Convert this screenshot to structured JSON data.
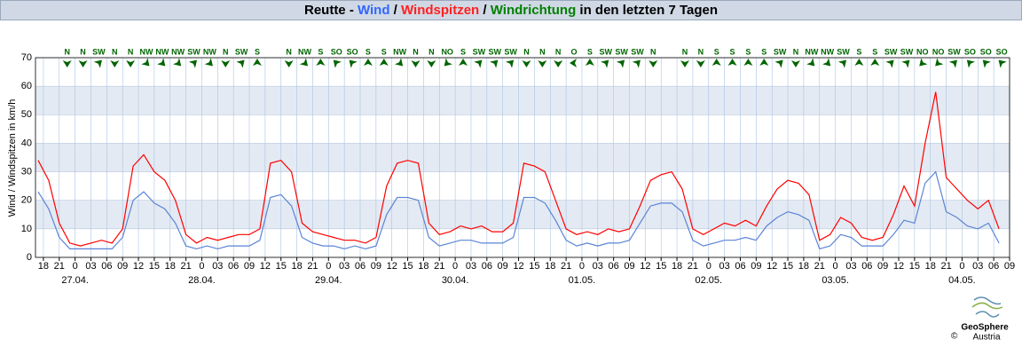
{
  "chart_data": {
    "type": "line",
    "title_parts": [
      {
        "text": "Reutte - ",
        "color": "#000000"
      },
      {
        "text": "Wind",
        "color": "#3366ff"
      },
      {
        "text": " / ",
        "color": "#000000"
      },
      {
        "text": "Windspitzen",
        "color": "#ff2020"
      },
      {
        "text": " / ",
        "color": "#000000"
      },
      {
        "text": "Windrichtung",
        "color": "#008000"
      },
      {
        "text": " in den letzten 7 Tagen",
        "color": "#000000"
      }
    ],
    "ylabel": "Wind / Windspitzen in km/h",
    "ylim": [
      0,
      70
    ],
    "yticks": [
      0,
      10,
      20,
      30,
      40,
      50,
      60,
      70
    ],
    "grid": true,
    "xlim": [
      -7.5,
      177
    ],
    "xticks": [
      {
        "value": -6,
        "label": "18"
      },
      {
        "value": -3,
        "label": "21"
      },
      {
        "value": 0,
        "label": "0"
      },
      {
        "value": 3,
        "label": "03"
      },
      {
        "value": 6,
        "label": "06"
      },
      {
        "value": 9,
        "label": "09"
      },
      {
        "value": 12,
        "label": "12"
      },
      {
        "value": 15,
        "label": "15"
      },
      {
        "value": 18,
        "label": "18"
      },
      {
        "value": 21,
        "label": "21"
      },
      {
        "value": 24,
        "label": "0"
      },
      {
        "value": 27,
        "label": "03"
      },
      {
        "value": 30,
        "label": "06"
      },
      {
        "value": 33,
        "label": "09"
      },
      {
        "value": 36,
        "label": "12"
      },
      {
        "value": 39,
        "label": "15"
      },
      {
        "value": 42,
        "label": "18"
      },
      {
        "value": 45,
        "label": "21"
      },
      {
        "value": 48,
        "label": "0"
      },
      {
        "value": 51,
        "label": "03"
      },
      {
        "value": 54,
        "label": "06"
      },
      {
        "value": 57,
        "label": "09"
      },
      {
        "value": 60,
        "label": "12"
      },
      {
        "value": 63,
        "label": "15"
      },
      {
        "value": 66,
        "label": "18"
      },
      {
        "value": 69,
        "label": "21"
      },
      {
        "value": 72,
        "label": "0"
      },
      {
        "value": 75,
        "label": "03"
      },
      {
        "value": 78,
        "label": "06"
      },
      {
        "value": 81,
        "label": "09"
      },
      {
        "value": 84,
        "label": "12"
      },
      {
        "value": 87,
        "label": "15"
      },
      {
        "value": 90,
        "label": "18"
      },
      {
        "value": 93,
        "label": "21"
      },
      {
        "value": 96,
        "label": "0"
      },
      {
        "value": 99,
        "label": "03"
      },
      {
        "value": 102,
        "label": "06"
      },
      {
        "value": 105,
        "label": "09"
      },
      {
        "value": 108,
        "label": "12"
      },
      {
        "value": 111,
        "label": "15"
      },
      {
        "value": 114,
        "label": "18"
      },
      {
        "value": 117,
        "label": "21"
      },
      {
        "value": 120,
        "label": "0"
      },
      {
        "value": 123,
        "label": "03"
      },
      {
        "value": 126,
        "label": "06"
      },
      {
        "value": 129,
        "label": "09"
      },
      {
        "value": 132,
        "label": "12"
      },
      {
        "value": 135,
        "label": "15"
      },
      {
        "value": 138,
        "label": "18"
      },
      {
        "value": 141,
        "label": "21"
      },
      {
        "value": 144,
        "label": "0"
      },
      {
        "value": 147,
        "label": "03"
      },
      {
        "value": 150,
        "label": "06"
      },
      {
        "value": 153,
        "label": "09"
      },
      {
        "value": 156,
        "label": "12"
      },
      {
        "value": 159,
        "label": "15"
      },
      {
        "value": 162,
        "label": "18"
      },
      {
        "value": 165,
        "label": "21"
      },
      {
        "value": 168,
        "label": "0"
      },
      {
        "value": 171,
        "label": "03"
      },
      {
        "value": 174,
        "label": "06"
      },
      {
        "value": 177,
        "label": "09"
      }
    ],
    "date_labels": [
      {
        "value": 0,
        "label": "27.04."
      },
      {
        "value": 24,
        "label": "28.04."
      },
      {
        "value": 48,
        "label": "29.04."
      },
      {
        "value": 72,
        "label": "30.04."
      },
      {
        "value": 96,
        "label": "01.05."
      },
      {
        "value": 120,
        "label": "02.05."
      },
      {
        "value": 144,
        "label": "03.05."
      },
      {
        "value": 168,
        "label": "04.05."
      }
    ],
    "x": [
      -7,
      -5,
      -3,
      -1,
      1,
      3,
      5,
      7,
      9,
      11,
      13,
      15,
      17,
      19,
      21,
      23,
      25,
      27,
      29,
      31,
      33,
      35,
      37,
      39,
      41,
      43,
      45,
      47,
      49,
      51,
      53,
      55,
      57,
      59,
      61,
      63,
      65,
      67,
      69,
      71,
      73,
      75,
      77,
      79,
      81,
      83,
      85,
      87,
      89,
      91,
      93,
      95,
      97,
      99,
      101,
      103,
      105,
      107,
      109,
      111,
      113,
      115,
      117,
      119,
      121,
      123,
      125,
      127,
      129,
      131,
      133,
      135,
      137,
      139,
      141,
      143,
      145,
      147,
      149,
      151,
      153,
      155,
      157,
      159,
      161,
      163,
      165,
      167,
      169,
      171,
      173,
      175
    ],
    "series": [
      {
        "name": "Windspitzen",
        "color": "#ff0000",
        "values": [
          34,
          27,
          12,
          5,
          4,
          5,
          6,
          5,
          10,
          32,
          36,
          30,
          27,
          20,
          8,
          5,
          7,
          6,
          7,
          8,
          8,
          10,
          33,
          34,
          30,
          12,
          9,
          8,
          7,
          6,
          6,
          5,
          7,
          25,
          33,
          34,
          33,
          12,
          8,
          9,
          11,
          10,
          11,
          9,
          9,
          12,
          33,
          32,
          30,
          20,
          10,
          8,
          9,
          8,
          10,
          9,
          10,
          18,
          27,
          29,
          30,
          24,
          10,
          8,
          10,
          12,
          11,
          13,
          11,
          18,
          24,
          27,
          26,
          22,
          6,
          8,
          14,
          12,
          7,
          6,
          7,
          15,
          25,
          18,
          40,
          58,
          28,
          24,
          20,
          17,
          20,
          10
        ]
      },
      {
        "name": "Wind",
        "color": "#5b84d6",
        "values": [
          23,
          17,
          7,
          3,
          3,
          3,
          3,
          3,
          7,
          20,
          23,
          19,
          17,
          12,
          4,
          3,
          4,
          3,
          4,
          4,
          4,
          6,
          21,
          22,
          18,
          7,
          5,
          4,
          4,
          3,
          4,
          3,
          4,
          15,
          21,
          21,
          20,
          7,
          4,
          5,
          6,
          6,
          5,
          5,
          5,
          7,
          21,
          21,
          19,
          13,
          6,
          4,
          5,
          4,
          5,
          5,
          6,
          12,
          18,
          19,
          19,
          16,
          6,
          4,
          5,
          6,
          6,
          7,
          6,
          11,
          14,
          16,
          15,
          13,
          3,
          4,
          8,
          7,
          4,
          4,
          4,
          8,
          13,
          12,
          26,
          30,
          16,
          14,
          11,
          10,
          12,
          5
        ]
      }
    ],
    "directions": {
      "x": [
        -1.5,
        1.5,
        4.5,
        7.5,
        10.5,
        13.5,
        16.5,
        19.5,
        22.5,
        25.5,
        28.5,
        31.5,
        34.5,
        37.5,
        40.5,
        43.5,
        46.5,
        49.5,
        52.5,
        55.5,
        58.5,
        61.5,
        64.5,
        67.5,
        70.5,
        73.5,
        76.5,
        79.5,
        82.5,
        85.5,
        88.5,
        91.5,
        94.5,
        97.5,
        100.5,
        103.5,
        106.5,
        109.5,
        112.5,
        115.5,
        118.5,
        121.5,
        124.5,
        127.5,
        130.5,
        133.5,
        136.5,
        139.5,
        142.5,
        145.5,
        148.5,
        151.5,
        154.5,
        157.5,
        160.5,
        163.5,
        166.5,
        169.5,
        172.5,
        175.5
      ],
      "labels": [
        "N",
        "N",
        "SW",
        "N",
        "N",
        "NW",
        "NW",
        "NW",
        "SW",
        "NW",
        "N",
        "SW",
        "S",
        null,
        "N",
        "NW",
        "S",
        "SO",
        "SO",
        "S",
        "S",
        "NW",
        "N",
        "N",
        "NO",
        "S",
        "SW",
        "SW",
        "SW",
        "N",
        "N",
        "N",
        "O",
        "S",
        "SW",
        "SW",
        "SW",
        "N",
        null,
        "N",
        "N",
        "S",
        "S",
        "S",
        "S",
        "SW",
        "N",
        "NW",
        "NW",
        "SW",
        "S",
        "S",
        "SW",
        "SW",
        "NO",
        "NO",
        "SW",
        "SO",
        "SO",
        "SO"
      ],
      "color": "#006400"
    },
    "logo": {
      "name": "GeoSphere",
      "sub": "Austria",
      "copyright": "©"
    }
  }
}
